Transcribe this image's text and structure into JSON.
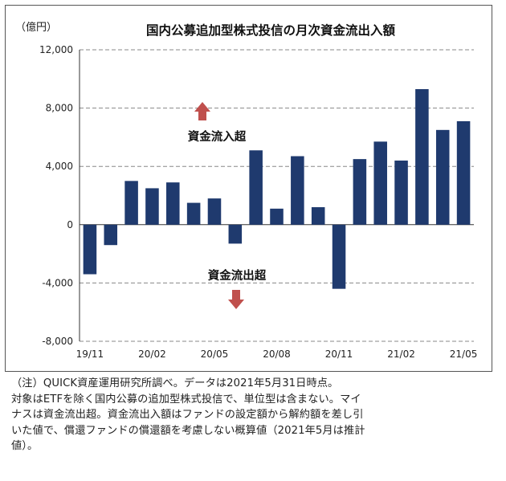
{
  "chart_data": {
    "type": "bar",
    "title": "国内公募追加型株式投信の月次資金流出入額",
    "unit_label": "（億円）",
    "categories": [
      "19/11",
      "19/12",
      "20/01",
      "20/02",
      "20/03",
      "20/04",
      "20/05",
      "20/06",
      "20/07",
      "20/08",
      "20/09",
      "20/10",
      "20/11",
      "20/12",
      "21/01",
      "21/02",
      "21/03",
      "21/04",
      "21/05"
    ],
    "values": [
      -3400,
      -1400,
      3000,
      2500,
      2900,
      1500,
      1800,
      -1300,
      5100,
      1100,
      4700,
      1200,
      -4400,
      4500,
      5700,
      4400,
      9300,
      6500,
      7100
    ],
    "x_tick_labels": [
      "19/11",
      "20/02",
      "20/05",
      "20/08",
      "20/11",
      "21/02",
      "21/05"
    ],
    "y_ticks": [
      "12,000",
      "8,000",
      "4,000",
      "0",
      "-4,000",
      "-8,000"
    ],
    "y_tick_values": [
      12000,
      8000,
      4000,
      0,
      -4000,
      -8000
    ],
    "ylim": [
      -8000,
      12000
    ],
    "grid": "horizontal dashed",
    "bar_color": "#1f3a6e",
    "annotations": {
      "inflow": "資金流入超",
      "outflow": "資金流出超"
    },
    "arrow_color": "#c0504d"
  },
  "note": [
    "（注）QUICK資産運用研究所調べ。データは2021年5月31日時点。",
    "対象はETFを除く国内公募の追加型株式投信で、単位型は含まない。マイ",
    "ナスは資金流出超。資金流出入額はファンドの設定額から解約額を差し引",
    "いた値で、償還ファンドの償還額を考慮しない概算値（2021年5月は推計",
    "値）。"
  ]
}
